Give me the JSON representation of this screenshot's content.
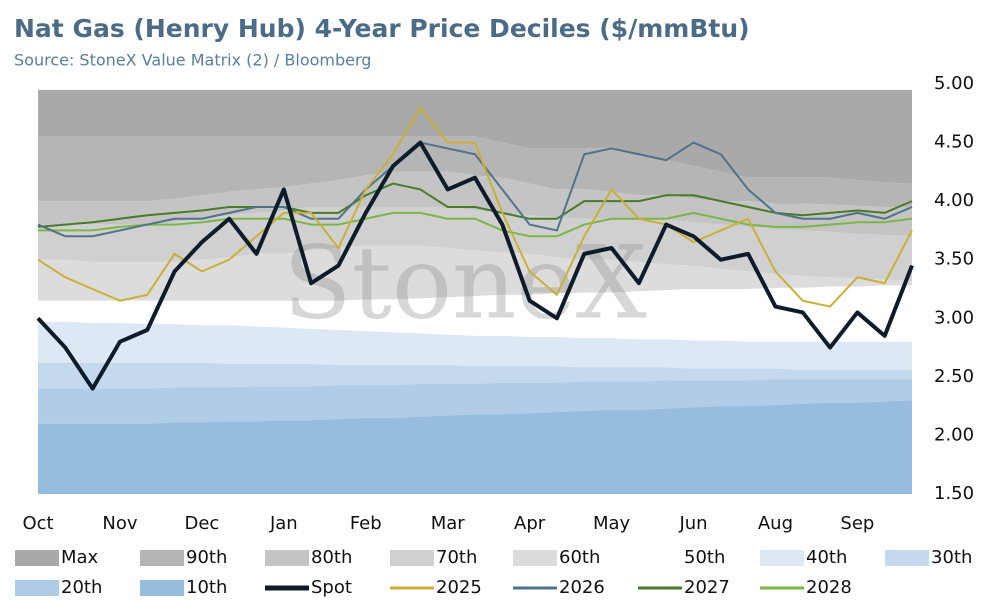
{
  "chart_data": {
    "type": "line",
    "title": "Nat Gas (Henry Hub) 4-Year Price Deciles ($/mmBtu)",
    "subtitle": "Source: StoneX Value Matrix (2) / Bloomberg",
    "watermark": "StoneX",
    "categories": [
      "Oct",
      null,
      null,
      "Nov",
      null,
      null,
      "Dec",
      null,
      null,
      "Jan",
      null,
      null,
      "Feb",
      null,
      null,
      "Mar",
      null,
      null,
      "Apr",
      null,
      null,
      "May",
      null,
      null,
      "Jun",
      null,
      null,
      "Aug",
      null,
      null,
      "Sep",
      null,
      null
    ],
    "ylim": [
      1.5,
      5.0
    ],
    "yticks": [
      {
        "value": 1.5,
        "label": "1.50"
      },
      {
        "value": 2.0,
        "label": "2.00"
      },
      {
        "value": 2.5,
        "label": "2.50"
      },
      {
        "value": 3.0,
        "label": "3.00"
      },
      {
        "value": 3.5,
        "label": "3.50"
      },
      {
        "value": 4.0,
        "label": "4.00"
      },
      {
        "value": 4.5,
        "label": "4.50"
      },
      {
        "value": 5.0,
        "label": "5.00"
      }
    ],
    "y_axis_side": "right",
    "grid": false,
    "legend": "bottom",
    "series": [
      {
        "name": "Max",
        "type": "area",
        "color": "#a9a9a9",
        "values": [
          4.95,
          4.95,
          4.95,
          4.95,
          4.95,
          4.95,
          4.95,
          4.95,
          4.95,
          4.95,
          4.95,
          4.95,
          4.95,
          4.95,
          4.95,
          4.95,
          4.95,
          4.95,
          4.95,
          4.95,
          4.95,
          4.95,
          4.95,
          4.95,
          4.95,
          4.95,
          4.95,
          4.95,
          4.95,
          4.95,
          4.95,
          4.95,
          4.95
        ]
      },
      {
        "name": "90th",
        "type": "area",
        "color": "#b5b5b5",
        "values": [
          4.55,
          4.55,
          4.55,
          4.55,
          4.55,
          4.55,
          4.55,
          4.55,
          4.55,
          4.55,
          4.55,
          4.55,
          4.55,
          4.55,
          4.55,
          4.55,
          4.55,
          4.5,
          4.45,
          4.45,
          4.45,
          4.45,
          4.4,
          4.35,
          4.3,
          4.25,
          4.2,
          4.2,
          4.2,
          4.2,
          4.18,
          4.16,
          4.15
        ]
      },
      {
        "name": "80th",
        "type": "area",
        "color": "#c4c4c4",
        "values": [
          4.0,
          4.0,
          4.0,
          4.0,
          4.0,
          4.02,
          4.05,
          4.08,
          4.1,
          4.12,
          4.15,
          4.18,
          4.22,
          4.25,
          4.25,
          4.25,
          4.22,
          4.2,
          4.15,
          4.1,
          4.1,
          4.08,
          4.05,
          4.05,
          4.02,
          4.0,
          4.0,
          3.98,
          3.98,
          3.97,
          3.96,
          3.95,
          3.95
        ]
      },
      {
        "name": "70th",
        "type": "area",
        "color": "#d0d0d0",
        "values": [
          3.8,
          3.8,
          3.8,
          3.8,
          3.8,
          3.82,
          3.85,
          3.88,
          3.9,
          3.92,
          3.95,
          3.95,
          3.95,
          3.95,
          3.95,
          3.95,
          3.92,
          3.9,
          3.88,
          3.86,
          3.85,
          3.85,
          3.85,
          3.84,
          3.82,
          3.8,
          3.78,
          3.76,
          3.75,
          3.74,
          3.72,
          3.71,
          3.7
        ]
      },
      {
        "name": "60th",
        "type": "area",
        "color": "#dcdcdc",
        "values": [
          3.5,
          3.5,
          3.48,
          3.48,
          3.48,
          3.48,
          3.5,
          3.52,
          3.55,
          3.55,
          3.58,
          3.6,
          3.62,
          3.62,
          3.62,
          3.6,
          3.58,
          3.56,
          3.55,
          3.52,
          3.5,
          3.5,
          3.48,
          3.46,
          3.45,
          3.42,
          3.4,
          3.38,
          3.36,
          3.35,
          3.34,
          3.33,
          3.32
        ]
      },
      {
        "name": "50th",
        "type": "area",
        "color": "#ffffff",
        "values": [
          3.15,
          3.15,
          3.15,
          3.15,
          3.15,
          3.15,
          3.15,
          3.15,
          3.15,
          3.15,
          3.15,
          3.15,
          3.16,
          3.16,
          3.17,
          3.18,
          3.19,
          3.2,
          3.2,
          3.21,
          3.22,
          3.22,
          3.23,
          3.24,
          3.25,
          3.25,
          3.25,
          3.26,
          3.26,
          3.27,
          3.27,
          3.28,
          3.28
        ]
      },
      {
        "name": "40th",
        "type": "area",
        "color": "#dce8f4",
        "values": [
          2.97,
          2.97,
          2.96,
          2.96,
          2.95,
          2.95,
          2.94,
          2.94,
          2.93,
          2.92,
          2.91,
          2.9,
          2.89,
          2.88,
          2.87,
          2.86,
          2.85,
          2.85,
          2.84,
          2.84,
          2.83,
          2.83,
          2.82,
          2.82,
          2.81,
          2.81,
          2.8,
          2.8,
          2.8,
          2.8,
          2.8,
          2.8,
          2.8
        ]
      },
      {
        "name": "30th",
        "type": "area",
        "color": "#c4d9ed",
        "values": [
          2.62,
          2.62,
          2.62,
          2.62,
          2.62,
          2.62,
          2.62,
          2.61,
          2.61,
          2.61,
          2.61,
          2.6,
          2.6,
          2.6,
          2.6,
          2.6,
          2.59,
          2.59,
          2.59,
          2.59,
          2.58,
          2.58,
          2.58,
          2.58,
          2.57,
          2.57,
          2.57,
          2.57,
          2.56,
          2.56,
          2.56,
          2.56,
          2.56
        ]
      },
      {
        "name": "20th",
        "type": "area",
        "color": "#b1cce6",
        "values": [
          2.4,
          2.4,
          2.4,
          2.4,
          2.4,
          2.41,
          2.41,
          2.41,
          2.42,
          2.42,
          2.42,
          2.43,
          2.43,
          2.43,
          2.44,
          2.44,
          2.44,
          2.45,
          2.45,
          2.45,
          2.46,
          2.46,
          2.46,
          2.47,
          2.47,
          2.47,
          2.47,
          2.48,
          2.48,
          2.48,
          2.48,
          2.48,
          2.48
        ]
      },
      {
        "name": "10th",
        "type": "area",
        "color": "#96bcde",
        "values": [
          2.1,
          2.1,
          2.1,
          2.1,
          2.1,
          2.11,
          2.11,
          2.12,
          2.12,
          2.13,
          2.13,
          2.14,
          2.15,
          2.15,
          2.16,
          2.17,
          2.18,
          2.18,
          2.19,
          2.2,
          2.21,
          2.22,
          2.22,
          2.23,
          2.24,
          2.25,
          2.25,
          2.26,
          2.27,
          2.28,
          2.28,
          2.29,
          2.3
        ]
      },
      {
        "name": "Spot",
        "type": "line",
        "color": "#0d1b2a",
        "width": 4,
        "values": [
          3.0,
          2.75,
          2.4,
          2.8,
          2.9,
          3.4,
          3.65,
          3.85,
          3.55,
          4.1,
          3.3,
          3.45,
          3.9,
          4.3,
          4.5,
          4.1,
          4.2,
          3.8,
          3.15,
          3.0,
          3.55,
          3.6,
          3.3,
          3.8,
          3.7,
          3.5,
          3.55,
          3.1,
          3.05,
          2.75,
          3.05,
          2.85,
          3.45
        ]
      },
      {
        "name": "2025",
        "type": "line",
        "color": "#c9b037",
        "width": 2,
        "values": [
          3.5,
          3.35,
          3.25,
          3.15,
          3.2,
          3.55,
          3.4,
          3.5,
          3.7,
          3.9,
          3.9,
          3.6,
          4.1,
          4.4,
          4.8,
          4.5,
          4.5,
          3.9,
          3.4,
          3.2,
          3.7,
          4.1,
          3.85,
          3.8,
          3.65,
          3.75,
          3.85,
          3.4,
          3.15,
          3.1,
          3.35,
          3.3,
          3.75
        ]
      },
      {
        "name": "2026",
        "type": "line",
        "color": "#4f7389",
        "width": 2,
        "values": [
          3.8,
          3.7,
          3.7,
          3.75,
          3.8,
          3.85,
          3.85,
          3.9,
          3.95,
          3.95,
          3.85,
          3.85,
          4.1,
          4.3,
          4.5,
          4.45,
          4.4,
          4.1,
          3.8,
          3.75,
          4.4,
          4.45,
          4.4,
          4.35,
          4.5,
          4.4,
          4.1,
          3.9,
          3.85,
          3.85,
          3.9,
          3.85,
          3.95
        ]
      },
      {
        "name": "2027",
        "type": "line",
        "color": "#4a7a2a",
        "width": 2,
        "values": [
          3.78,
          3.8,
          3.82,
          3.85,
          3.88,
          3.9,
          3.92,
          3.95,
          3.95,
          3.95,
          3.9,
          3.9,
          4.05,
          4.15,
          4.1,
          3.95,
          3.95,
          3.9,
          3.85,
          3.85,
          4.0,
          4.0,
          4.0,
          4.05,
          4.05,
          4.0,
          3.95,
          3.9,
          3.88,
          3.9,
          3.92,
          3.9,
          4.0
        ]
      },
      {
        "name": "2028",
        "type": "line",
        "color": "#7ab648",
        "width": 2,
        "values": [
          3.75,
          3.75,
          3.75,
          3.78,
          3.8,
          3.8,
          3.82,
          3.85,
          3.85,
          3.85,
          3.8,
          3.8,
          3.85,
          3.9,
          3.9,
          3.85,
          3.85,
          3.75,
          3.7,
          3.7,
          3.8,
          3.85,
          3.85,
          3.85,
          3.9,
          3.85,
          3.8,
          3.78,
          3.78,
          3.8,
          3.82,
          3.82,
          3.85
        ]
      }
    ]
  }
}
